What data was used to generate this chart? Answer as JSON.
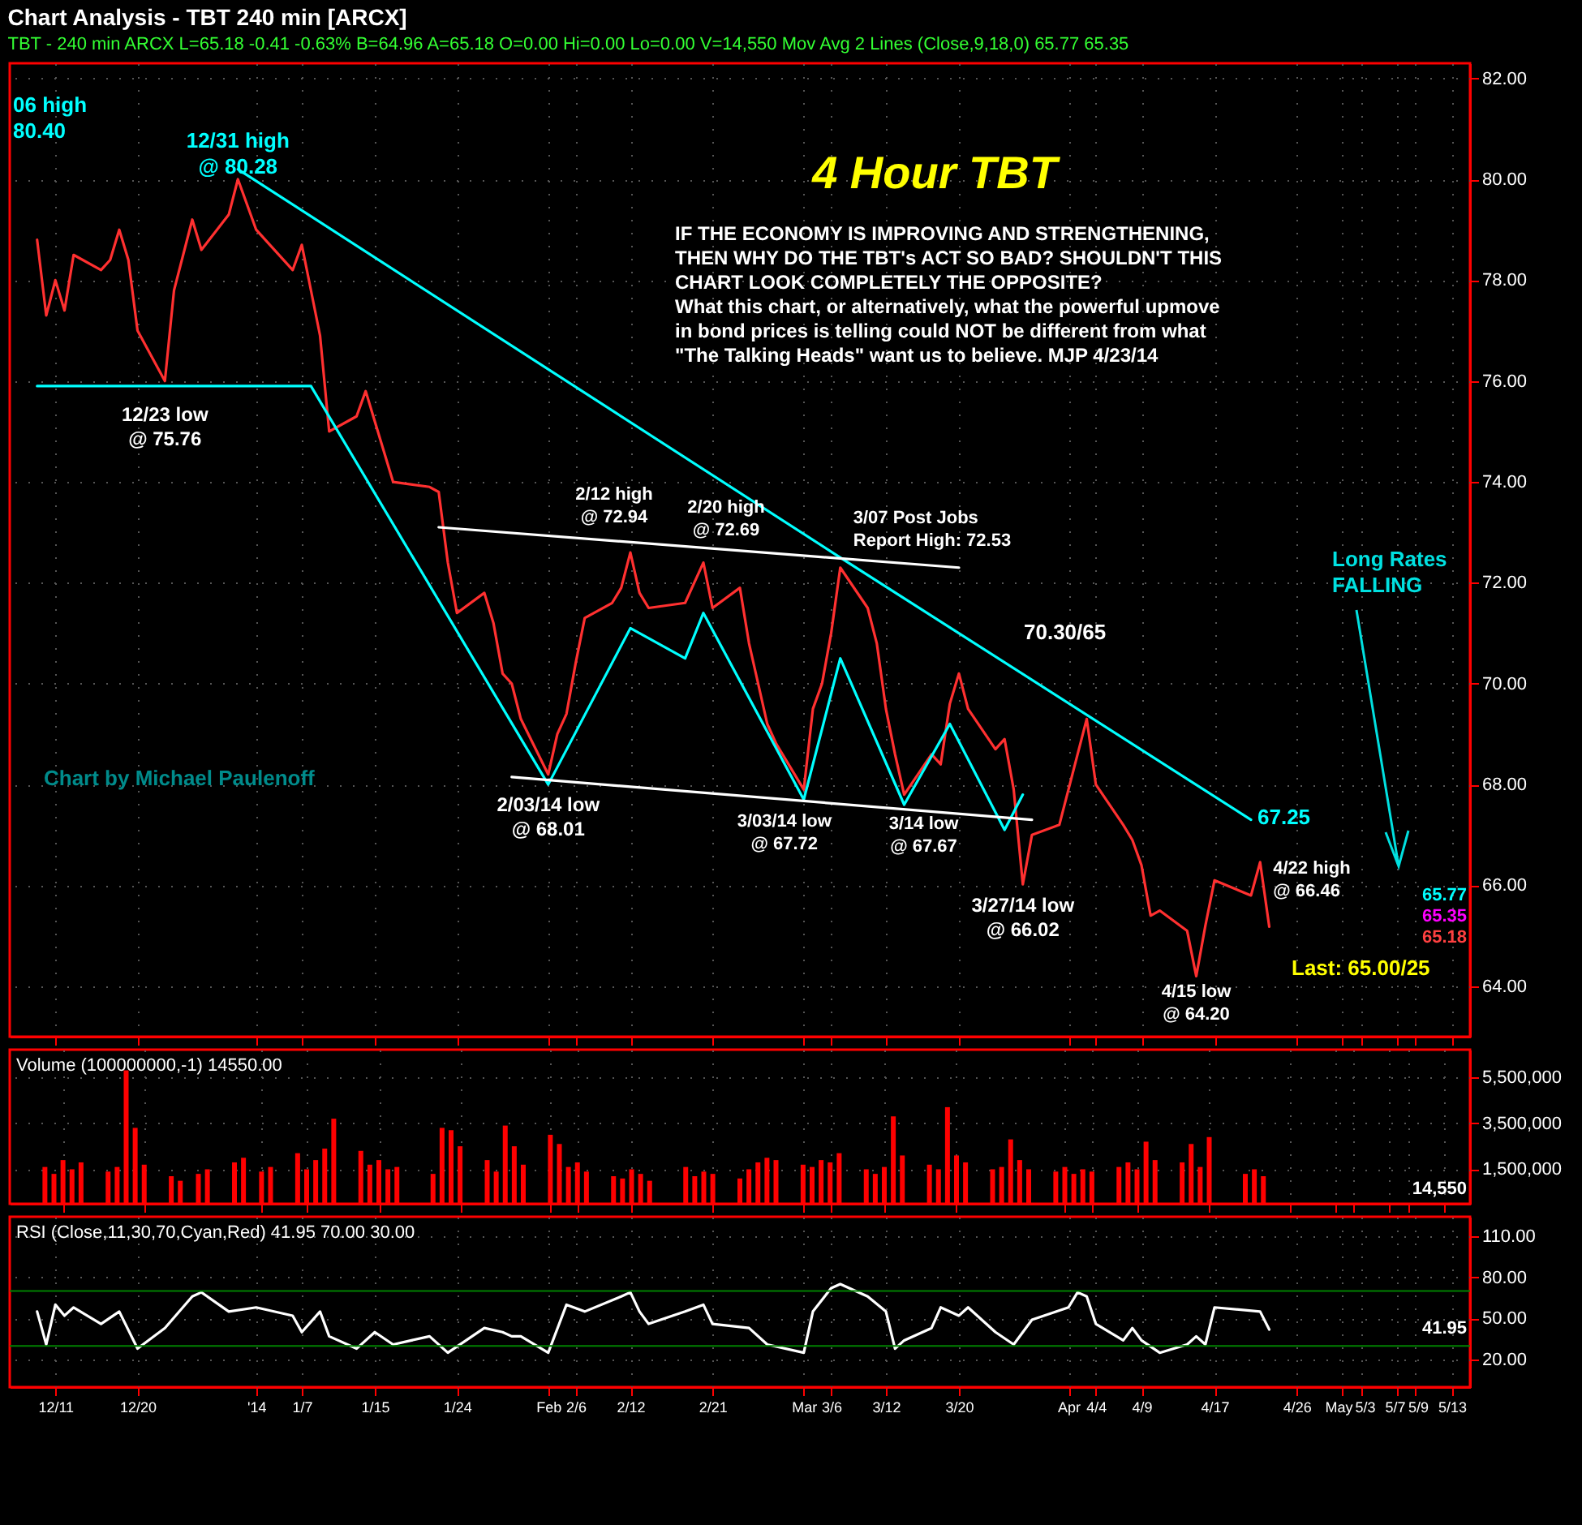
{
  "chart_data": [
    {
      "type": "line",
      "title": "Chart Analysis - TBT 240 min [ARCX]",
      "subtitle": "TBT - 240 min  ARCX  L=65.18  -0.41  -0.63%  B=64.96  A=65.18  O=0.00  Hi=0.00  Lo=0.00  V=14,550  Mov Avg 2 Lines (Close,9,18,0)  65.77  65.35",
      "x": [
        "2013-12-09",
        "2013-12-10",
        "2013-12-11",
        "2013-12-12",
        "2013-12-13",
        "2013-12-16",
        "2013-12-17",
        "2013-12-18",
        "2013-12-19",
        "2013-12-20",
        "2013-12-23",
        "2013-12-24",
        "2013-12-26",
        "2013-12-27",
        "2013-12-30",
        "2013-12-31",
        "2014-01-02",
        "2014-01-03",
        "2014-01-06",
        "2014-01-07",
        "2014-01-08",
        "2014-01-09",
        "2014-01-10",
        "2014-01-13",
        "2014-01-14",
        "2014-01-15",
        "2014-01-16",
        "2014-01-17",
        "2014-01-21",
        "2014-01-22",
        "2014-01-23",
        "2014-01-24",
        "2014-01-27",
        "2014-01-28",
        "2014-01-29",
        "2014-01-30",
        "2014-01-31",
        "2014-02-03",
        "2014-02-04",
        "2014-02-05",
        "2014-02-06",
        "2014-02-07",
        "2014-02-10",
        "2014-02-11",
        "2014-02-12",
        "2014-02-13",
        "2014-02-14",
        "2014-02-18",
        "2014-02-19",
        "2014-02-20",
        "2014-02-21",
        "2014-02-24",
        "2014-02-25",
        "2014-02-26",
        "2014-02-27",
        "2014-02-28",
        "2014-03-03",
        "2014-03-04",
        "2014-03-05",
        "2014-03-06",
        "2014-03-07",
        "2014-03-10",
        "2014-03-11",
        "2014-03-12",
        "2014-03-13",
        "2014-03-14",
        "2014-03-17",
        "2014-03-18",
        "2014-03-19",
        "2014-03-20",
        "2014-03-21",
        "2014-03-24",
        "2014-03-25",
        "2014-03-26",
        "2014-03-27",
        "2014-03-28",
        "2014-03-31",
        "2014-04-01",
        "2014-04-02",
        "2014-04-03",
        "2014-04-04",
        "2014-04-07",
        "2014-04-08",
        "2014-04-09",
        "2014-04-10",
        "2014-04-11",
        "2014-04-14",
        "2014-04-15",
        "2014-04-16",
        "2014-04-17",
        "2014-04-21",
        "2014-04-22",
        "2014-04-23"
      ],
      "series": [
        {
          "color": "#ff3030",
          "values": [
            78.8,
            77.3,
            78.0,
            77.4,
            78.5,
            78.2,
            78.4,
            79.0,
            78.4,
            77.0,
            76.0,
            77.8,
            79.2,
            78.6,
            79.3,
            80.0,
            79.0,
            78.8,
            78.2,
            78.7,
            77.8,
            76.9,
            75.0,
            75.3,
            75.8,
            75.2,
            74.6,
            74.0,
            73.9,
            73.8,
            72.4,
            71.4,
            71.8,
            71.2,
            70.2,
            70.0,
            69.3,
            68.2,
            69.0,
            69.4,
            70.4,
            71.3,
            71.6,
            71.9,
            72.6,
            71.8,
            71.5,
            71.6,
            72.0,
            72.4,
            71.5,
            71.9,
            70.8,
            70.0,
            69.2,
            68.8,
            67.9,
            69.5,
            70.0,
            71.0,
            72.3,
            71.5,
            70.8,
            69.5,
            68.6,
            67.8,
            68.6,
            68.4,
            69.6,
            70.2,
            69.5,
            68.7,
            68.9,
            67.9,
            66.02,
            67.0,
            67.2,
            67.9,
            68.6,
            69.3,
            68.0,
            67.2,
            66.9,
            66.4,
            65.4,
            65.5,
            65.1,
            64.2,
            65.2,
            66.1,
            65.8,
            66.46,
            65.18
          ]
        },
        {
          "type": "line",
          "color": "#00ffff",
          "x": [
            "2013-12-31",
            "2014-03-07",
            "2014-04-21"
          ],
          "values": [
            80.2,
            72.5,
            67.3
          ]
        },
        {
          "type": "line",
          "color": "#00ffff",
          "x": [
            "2013-12-09",
            "2014-01-08",
            "2014-02-03",
            "2014-02-12",
            "2014-02-18",
            "2014-02-20",
            "2014-03-03",
            "2014-03-07",
            "2014-03-14",
            "2014-03-19",
            "2014-03-25",
            "2014-03-27"
          ],
          "values": [
            75.9,
            75.9,
            68.0,
            71.1,
            70.5,
            71.4,
            67.7,
            70.5,
            67.6,
            69.2,
            67.1,
            67.8
          ]
        },
        {
          "type": "line",
          "color": "#ffffff",
          "x": [
            "2014-01-22",
            "2014-03-20"
          ],
          "values": [
            73.1,
            72.3
          ]
        },
        {
          "type": "line",
          "color": "#ffffff",
          "x": [
            "2014-01-30",
            "2014-03-28"
          ],
          "values": [
            68.15,
            67.3
          ]
        }
      ],
      "xlim": [
        "2013-12-06",
        "2014-05-15"
      ],
      "xticks": [
        {
          "value": "2013-12-11",
          "label": null
        },
        {
          "value": "2013-12-20",
          "label": null
        },
        {
          "value": "2014-01-02",
          "label": null
        },
        {
          "value": "2014-01-07",
          "label": null
        },
        {
          "value": "2014-01-15",
          "label": null
        },
        {
          "value": "2014-01-24",
          "label": null
        },
        {
          "value": "2014-02-03",
          "label": null
        },
        {
          "value": "2014-02-06",
          "label": null
        },
        {
          "value": "2014-02-12",
          "label": null
        },
        {
          "value": "2014-02-21",
          "label": null
        },
        {
          "value": "2014-03-03",
          "label": null
        },
        {
          "value": "2014-03-06",
          "label": null
        },
        {
          "value": "2014-03-12",
          "label": null
        },
        {
          "value": "2014-03-20",
          "label": null
        },
        {
          "value": "2014-04-01",
          "label": null
        },
        {
          "value": "2014-04-04",
          "label": null
        },
        {
          "value": "2014-04-09",
          "label": null
        },
        {
          "value": "2014-04-17",
          "label": null
        },
        {
          "value": "2014-04-26",
          "label": null
        },
        {
          "value": "2014-05-01",
          "label": null
        },
        {
          "value": "2014-05-03",
          "label": null
        },
        {
          "value": "2014-05-07",
          "label": null
        },
        {
          "value": "2014-05-09",
          "label": null
        },
        {
          "value": "2014-05-13",
          "label": null
        }
      ],
      "ylim": [
        63,
        82.3
      ],
      "yticks": [
        {
          "value": 64,
          "label": "64.00"
        },
        {
          "value": 66,
          "label": "66.00"
        },
        {
          "value": 68,
          "label": "68.00"
        },
        {
          "value": 70,
          "label": "70.00"
        },
        {
          "value": 72,
          "label": "72.00"
        },
        {
          "value": 74,
          "label": "74.00"
        },
        {
          "value": 76,
          "label": "76.00"
        },
        {
          "value": 78,
          "label": "78.00"
        },
        {
          "value": 80,
          "label": "80.00"
        },
        {
          "value": 82,
          "label": "82.00"
        }
      ],
      "grid": true,
      "tick_labels": "y",
      "annotations": [
        {
          "text": "12/31 high\n@ 80.28",
          "x": "2013-12-31",
          "y": 80.28
        },
        {
          "text": "12/23 low\n@ 75.76",
          "x": "2013-12-23",
          "y": 75.76
        },
        {
          "text": "2/03/14 low\n@ 68.01",
          "x": "2014-02-03",
          "y": 68.01
        },
        {
          "text": "2/12 high\n@ 72.94",
          "x": "2014-02-12",
          "y": 72.94
        },
        {
          "text": "2/20 high\n@ 72.69",
          "x": "2014-02-20",
          "y": 72.69
        },
        {
          "text": "3/07 Post Jobs\nReport High: 72.53",
          "x": "2014-03-07",
          "y": 72.53
        },
        {
          "text": "3/03/14 low\n@ 67.72",
          "x": "2014-03-03",
          "y": 67.72
        },
        {
          "text": "3/14 low\n@ 67.67",
          "x": "2014-03-14",
          "y": 67.67
        },
        {
          "text": "3/27/14 low\n@ 66.02",
          "x": "2014-03-27",
          "y": 66.02
        },
        {
          "text": "4/15 low\n@ 64.20",
          "x": "2014-04-15",
          "y": 64.2
        },
        {
          "text": "4/22 high\n@ 66.46",
          "x": "2014-04-22",
          "y": 66.46
        },
        "06 high\n80.40",
        "70.30/65",
        "67.25",
        "Last: 65.00/25",
        "65.77",
        "65.35",
        "65.18",
        "4 Hour TBT",
        "IF THE ECONOMY IS IMPROVING AND STRENGTHENING,\nTHEN WHY DO THE TBT's ACT SO BAD?  SHOULDN'T THIS\nCHART LOOK COMPLETELY THE OPPOSITE?\nWhat this chart, or alternatively, what the powerful upmove\nin bond prices is telling could NOT be different from what\n\"The Talking Heads\" want us to believe.  MJP 4/23/14",
        "Long Rates\nFALLING",
        "Chart by Michael Paulenoff"
      ]
    },
    {
      "type": "bar",
      "title": "Volume (100000000,-1)  14550.00",
      "color": "#ff0000",
      "x": [
        "2013-12-09",
        "2013-12-10",
        "2013-12-11",
        "2013-12-12",
        "2013-12-13",
        "2013-12-16",
        "2013-12-17",
        "2013-12-18",
        "2013-12-19",
        "2013-12-20",
        "2013-12-23",
        "2013-12-24",
        "2013-12-26",
        "2013-12-27",
        "2013-12-30",
        "2013-12-31",
        "2014-01-02",
        "2014-01-03",
        "2014-01-06",
        "2014-01-07",
        "2014-01-08",
        "2014-01-09",
        "2014-01-10",
        "2014-01-13",
        "2014-01-14",
        "2014-01-15",
        "2014-01-16",
        "2014-01-17",
        "2014-01-21",
        "2014-01-22",
        "2014-01-23",
        "2014-01-24",
        "2014-01-27",
        "2014-01-28",
        "2014-01-29",
        "2014-01-30",
        "2014-01-31",
        "2014-02-03",
        "2014-02-04",
        "2014-02-05",
        "2014-02-06",
        "2014-02-07",
        "2014-02-10",
        "2014-02-11",
        "2014-02-12",
        "2014-02-13",
        "2014-02-14",
        "2014-02-18",
        "2014-02-19",
        "2014-02-20",
        "2014-02-21",
        "2014-02-24",
        "2014-02-25",
        "2014-02-26",
        "2014-02-27",
        "2014-02-28",
        "2014-03-03",
        "2014-03-04",
        "2014-03-05",
        "2014-03-06",
        "2014-03-07",
        "2014-03-10",
        "2014-03-11",
        "2014-03-12",
        "2014-03-13",
        "2014-03-14",
        "2014-03-17",
        "2014-03-18",
        "2014-03-19",
        "2014-03-20",
        "2014-03-21",
        "2014-03-24",
        "2014-03-25",
        "2014-03-26",
        "2014-03-27",
        "2014-03-28",
        "2014-03-31",
        "2014-04-01",
        "2014-04-02",
        "2014-04-03",
        "2014-04-04",
        "2014-04-07",
        "2014-04-08",
        "2014-04-09",
        "2014-04-10",
        "2014-04-11",
        "2014-04-14",
        "2014-04-15",
        "2014-04-16",
        "2014-04-17",
        "2014-04-21",
        "2014-04-22",
        "2014-04-23"
      ],
      "values": [
        1600000,
        1300000,
        1900000,
        1500000,
        1800000,
        1400000,
        1600000,
        5800000,
        3300000,
        1700000,
        1200000,
        1000000,
        1300000,
        1500000,
        1800000,
        2000000,
        1400000,
        1600000,
        2200000,
        1500000,
        1900000,
        2400000,
        3700000,
        2300000,
        1700000,
        1900000,
        1500000,
        1600000,
        1300000,
        3300000,
        3200000,
        2500000,
        1900000,
        1400000,
        3400000,
        2500000,
        1700000,
        3000000,
        2600000,
        1600000,
        1800000,
        1400000,
        1200000,
        1100000,
        1500000,
        1300000,
        1000000,
        1600000,
        1200000,
        1400000,
        1300000,
        1100000,
        1500000,
        1800000,
        2000000,
        1900000,
        1700000,
        1600000,
        1900000,
        1800000,
        2200000,
        1500000,
        1300000,
        1600000,
        3800000,
        2100000,
        1700000,
        1500000,
        4200000,
        2100000,
        1800000,
        1500000,
        1600000,
        2800000,
        1900000,
        1500000,
        1400000,
        1600000,
        1300000,
        1500000,
        1400000,
        1600000,
        1800000,
        1500000,
        2700000,
        1900000,
        1800000,
        2600000,
        1600000,
        2900000,
        1300000,
        1500000,
        1200000
      ],
      "xlim": [
        "2013-12-06",
        "2014-05-15"
      ],
      "xticks": [
        {
          "value": "2013-12-11",
          "label": null
        },
        {
          "value": "2013-12-20",
          "label": null
        },
        {
          "value": "2014-01-02",
          "label": null
        },
        {
          "value": "2014-01-07",
          "label": null
        },
        {
          "value": "2014-01-15",
          "label": null
        },
        {
          "value": "2014-01-24",
          "label": null
        },
        {
          "value": "2014-02-03",
          "label": null
        },
        {
          "value": "2014-02-06",
          "label": null
        },
        {
          "value": "2014-02-12",
          "label": null
        },
        {
          "value": "2014-02-21",
          "label": null
        },
        {
          "value": "2014-03-03",
          "label": null
        },
        {
          "value": "2014-03-06",
          "label": null
        },
        {
          "value": "2014-03-12",
          "label": null
        },
        {
          "value": "2014-03-20",
          "label": null
        },
        {
          "value": "2014-04-01",
          "label": null
        },
        {
          "value": "2014-04-04",
          "label": null
        },
        {
          "value": "2014-04-09",
          "label": null
        },
        {
          "value": "2014-04-17",
          "label": null
        },
        {
          "value": "2014-04-26",
          "label": null
        },
        {
          "value": "2014-05-01",
          "label": null
        },
        {
          "value": "2014-05-03",
          "label": null
        },
        {
          "value": "2014-05-07",
          "label": null
        },
        {
          "value": "2014-05-09",
          "label": null
        },
        {
          "value": "2014-05-13",
          "label": null
        }
      ],
      "ylim": [
        0,
        6700000
      ],
      "yticks": [
        {
          "value": 1500000,
          "label": "1,500,000"
        },
        {
          "value": 3500000,
          "label": "3,500,000"
        },
        {
          "value": 5500000,
          "label": "5,500,000"
        }
      ],
      "grid": true,
      "tick_labels": "y",
      "annotations": [
        "14,550"
      ]
    },
    {
      "type": "line",
      "title": "RSI (Close,11,30,70,Cyan,Red)  41.95  70.00  30.00",
      "color": "#ffffff",
      "x": [
        "2013-12-09",
        "2013-12-10",
        "2013-12-11",
        "2013-12-12",
        "2013-12-13",
        "2013-12-16",
        "2013-12-18",
        "2013-12-20",
        "2013-12-23",
        "2013-12-26",
        "2013-12-27",
        "2013-12-30",
        "2014-01-02",
        "2014-01-06",
        "2014-01-07",
        "2014-01-09",
        "2014-01-10",
        "2014-01-13",
        "2014-01-15",
        "2014-01-17",
        "2014-01-21",
        "2014-01-23",
        "2014-01-27",
        "2014-01-29",
        "2014-01-30",
        "2014-01-31",
        "2014-02-03",
        "2014-02-05",
        "2014-02-07",
        "2014-02-11",
        "2014-02-12",
        "2014-02-13",
        "2014-02-14",
        "2014-02-18",
        "2014-02-20",
        "2014-02-21",
        "2014-02-25",
        "2014-02-27",
        "2014-03-03",
        "2014-03-04",
        "2014-03-06",
        "2014-03-07",
        "2014-03-10",
        "2014-03-12",
        "2014-03-13",
        "2014-03-14",
        "2014-03-17",
        "2014-03-18",
        "2014-03-20",
        "2014-03-21",
        "2014-03-24",
        "2014-03-26",
        "2014-03-28",
        "2014-04-01",
        "2014-04-02",
        "2014-04-03",
        "2014-04-04",
        "2014-04-07",
        "2014-04-08",
        "2014-04-09",
        "2014-04-11",
        "2014-04-14",
        "2014-04-15",
        "2014-04-16",
        "2014-04-17",
        "2014-04-22",
        "2014-04-23"
      ],
      "values": [
        55,
        31,
        60,
        52,
        58,
        46,
        55,
        28,
        43,
        66,
        69,
        55,
        58,
        52,
        40,
        55,
        37,
        28,
        40,
        31,
        37,
        25,
        43,
        40,
        37,
        37,
        25,
        60,
        55,
        66,
        69,
        55,
        46,
        55,
        60,
        46,
        43,
        31,
        25,
        55,
        72,
        75,
        66,
        55,
        28,
        34,
        43,
        58,
        52,
        58,
        40,
        31,
        49,
        58,
        69,
        66,
        46,
        34,
        43,
        34,
        25,
        31,
        37,
        31,
        58,
        55,
        41.95
      ],
      "xlim": [
        "2013-12-06",
        "2014-05-15"
      ],
      "xticks": [
        {
          "value": "2013-12-11",
          "label": "12/11"
        },
        {
          "value": "2013-12-20",
          "label": "12/20"
        },
        {
          "value": "2014-01-02",
          "label": "'14"
        },
        {
          "value": "2014-01-07",
          "label": "1/7"
        },
        {
          "value": "2014-01-15",
          "label": "1/15"
        },
        {
          "value": "2014-01-24",
          "label": "1/24"
        },
        {
          "value": "2014-02-03",
          "label": "Feb"
        },
        {
          "value": "2014-02-06",
          "label": "2/6"
        },
        {
          "value": "2014-02-12",
          "label": "2/12"
        },
        {
          "value": "2014-02-21",
          "label": "2/21"
        },
        {
          "value": "2014-03-03",
          "label": "Mar"
        },
        {
          "value": "2014-03-06",
          "label": "3/6"
        },
        {
          "value": "2014-03-12",
          "label": "3/12"
        },
        {
          "value": "2014-03-20",
          "label": "3/20"
        },
        {
          "value": "2014-04-01",
          "label": "Apr"
        },
        {
          "value": "2014-04-04",
          "label": "4/4"
        },
        {
          "value": "2014-04-09",
          "label": "4/9"
        },
        {
          "value": "2014-04-17",
          "label": "4/17"
        },
        {
          "value": "2014-04-26",
          "label": "4/26"
        },
        {
          "value": "2014-05-01",
          "label": "May"
        },
        {
          "value": "2014-05-03",
          "label": "5/3"
        },
        {
          "value": "2014-05-07",
          "label": "5/7"
        },
        {
          "value": "2014-05-09",
          "label": "5/9"
        },
        {
          "value": "2014-05-13",
          "label": "5/13"
        }
      ],
      "ylim": [
        0,
        124
      ],
      "yticks": [
        {
          "value": 20,
          "label": "20.00"
        },
        {
          "value": 50,
          "label": "50.00"
        },
        {
          "value": 80,
          "label": "80.00"
        },
        {
          "value": 110,
          "label": "110.00"
        }
      ],
      "grid": true,
      "ref_lines": [
        {
          "axis": "y",
          "value": 70,
          "label": null,
          "color": "#008000"
        },
        {
          "axis": "y",
          "value": 30,
          "label": null,
          "color": "#008000"
        }
      ],
      "annotations": [
        "41.95"
      ]
    }
  ]
}
